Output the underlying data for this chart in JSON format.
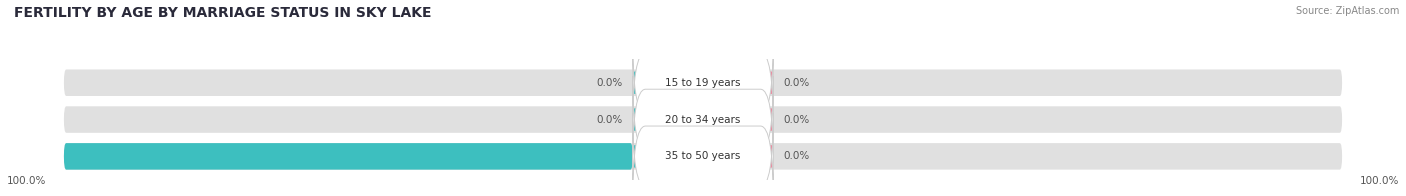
{
  "title": "FERTILITY BY AGE BY MARRIAGE STATUS IN SKY LAKE",
  "source": "Source: ZipAtlas.com",
  "categories": [
    "15 to 19 years",
    "20 to 34 years",
    "35 to 50 years"
  ],
  "married_values": [
    0.0,
    0.0,
    100.0
  ],
  "unmarried_values": [
    0.0,
    0.0,
    0.0
  ],
  "married_color": "#3dbfbf",
  "unmarried_color": "#f08098",
  "bg_bar_color": "#e0e0e0",
  "title_fontsize": 10,
  "source_fontsize": 7,
  "label_fontsize": 7.5,
  "category_fontsize": 7.5,
  "legend_fontsize": 8,
  "left_label_100": "100.0%",
  "right_label_100": "100.0%",
  "background_color": "#ffffff"
}
